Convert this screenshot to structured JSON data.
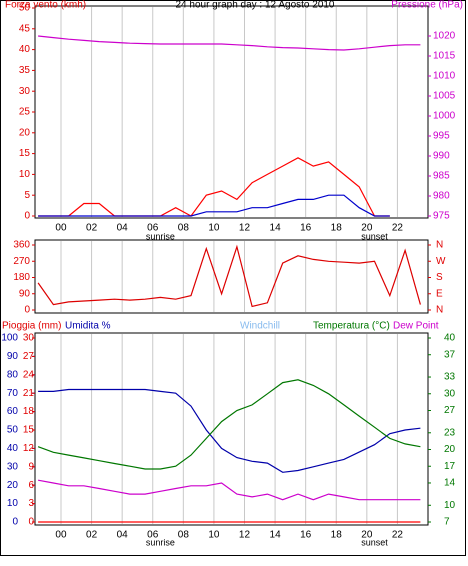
{
  "chart_data": [
    {
      "type": "line",
      "title": "24 hour graph day : 12 Agosto 2010",
      "ylabel": "Forza vento (kmh)",
      "y2label": "Pressione (hPa)",
      "ycolor": "#e00000",
      "y2color": "#cc00cc",
      "xlim": [
        -1.7,
        24
      ],
      "xticks": [
        {
          "value": 0,
          "label": "00"
        },
        {
          "value": 2,
          "label": "02"
        },
        {
          "value": 4,
          "label": "04"
        },
        {
          "value": 6,
          "label": "06"
        },
        {
          "value": 8,
          "label": "08"
        },
        10,
        12,
        14,
        16,
        18,
        20,
        22
      ],
      "ylim": [
        0,
        50
      ],
      "yticks": [
        0,
        5,
        10,
        15,
        20,
        25,
        30,
        35,
        40,
        45,
        50
      ],
      "y2lim": [
        975,
        1027
      ],
      "y2ticks": [
        975,
        980,
        985,
        990,
        995,
        1000,
        1005,
        1010,
        1015,
        1020
      ],
      "annotations": [
        {
          "text": "sunrise",
          "x": 6.5
        },
        {
          "text": "sunset",
          "x": 20.5
        }
      ],
      "x": [
        -1.5,
        -0.5,
        0.5,
        1.5,
        2.5,
        3.5,
        4.5,
        5.5,
        6.5,
        7.5,
        8.5,
        9.5,
        10.5,
        11.5,
        12.5,
        13.5,
        14.5,
        15.5,
        16.5,
        17.5,
        18.5,
        19.5,
        20.5,
        21.5,
        22.5,
        23.5
      ],
      "series": [
        {
          "color": "#ff0000",
          "values": [
            0,
            0,
            0,
            3,
            3,
            0,
            0,
            0,
            0,
            2,
            0,
            5,
            6,
            4,
            8,
            10,
            12,
            14,
            12,
            13,
            10,
            7,
            0,
            0,
            null,
            null
          ]
        },
        {
          "color": "#0000cc",
          "values": [
            0,
            0,
            0,
            0,
            0,
            0,
            0,
            0,
            0,
            0,
            0,
            1,
            1,
            1,
            2,
            2,
            3,
            4,
            4,
            5,
            5,
            2,
            0,
            0,
            null,
            null
          ]
        },
        {
          "color": "#cc00cc",
          "axis": "y2",
          "values": [
            1020,
            1019.6,
            1019.2,
            1018.9,
            1018.6,
            1018.4,
            1018.2,
            1018.1,
            1018,
            1018,
            1018,
            1018,
            1018,
            1017.8,
            1017.6,
            1017.3,
            1017.1,
            1017,
            1016.8,
            1016.6,
            1016.5,
            1016.8,
            1017.2,
            1017.6,
            1017.8,
            1017.8
          ]
        }
      ]
    },
    {
      "type": "line",
      "ycolor": "#e00000",
      "y2color": "#e00000",
      "xlim": [
        -1.7,
        24
      ],
      "xticks": [
        0,
        2,
        4,
        6,
        8,
        10,
        12,
        14,
        16,
        18,
        20,
        22
      ],
      "ylim": [
        0,
        360
      ],
      "yticks": [
        0,
        90,
        180,
        270,
        360
      ],
      "y2lim": [
        0,
        360
      ],
      "y2ticks": [
        {
          "value": 0,
          "label": "N"
        },
        {
          "value": 90,
          "label": "E"
        },
        {
          "value": 180,
          "label": "S"
        },
        {
          "value": 270,
          "label": "W"
        },
        {
          "value": 360,
          "label": "N"
        }
      ],
      "x": [
        -1.5,
        -0.5,
        0.5,
        1.5,
        2.5,
        3.5,
        4.5,
        5.5,
        6.5,
        7.5,
        8.5,
        9.5,
        10.5,
        11.5,
        12.5,
        13.5,
        14.5,
        15.5,
        16.5,
        17.5,
        18.5,
        19.5,
        20.5,
        21.5,
        22.5,
        23.5
      ],
      "series": [
        {
          "color": "#dd0000",
          "values": [
            150,
            30,
            45,
            50,
            55,
            60,
            55,
            60,
            70,
            60,
            80,
            340,
            90,
            350,
            20,
            40,
            260,
            300,
            280,
            270,
            265,
            260,
            270,
            80,
            330,
            30
          ]
        }
      ]
    },
    {
      "type": "line",
      "header": [
        {
          "text": "Pioggia (mm)",
          "color": "#e00000"
        },
        {
          "text": "Umidita %",
          "color": "#0000aa"
        },
        {
          "text": "Windchill",
          "color": "#88bbee"
        },
        {
          "text": "Temperatura (°C)",
          "color": "#007700"
        },
        {
          "text": "Dew Point",
          "color": "#cc00cc"
        }
      ],
      "ycolor": "#0000aa",
      "y2color": "#007700",
      "y3color": "#e00000",
      "xlim": [
        -1.7,
        24
      ],
      "xticks": [
        {
          "value": 0,
          "label": "00"
        },
        {
          "value": 2,
          "label": "02"
        },
        {
          "value": 4,
          "label": "04"
        },
        {
          "value": 6,
          "label": "06"
        },
        {
          "value": 8,
          "label": "08"
        },
        10,
        12,
        14,
        16,
        18,
        20,
        22
      ],
      "ylim": [
        0,
        100
      ],
      "yticks": [
        0,
        10,
        20,
        30,
        40,
        50,
        60,
        70,
        80,
        90,
        100
      ],
      "y3lim": [
        0,
        30
      ],
      "y3ticks": [
        0,
        3,
        6,
        9,
        12,
        15,
        18,
        21,
        24,
        27,
        30
      ],
      "y2lim": [
        7,
        40
      ],
      "y2ticks": [
        7,
        10,
        14,
        17,
        20,
        23,
        27,
        30,
        33,
        37,
        40
      ],
      "annotations": [
        {
          "text": "sunrise",
          "x": 6.5
        },
        {
          "text": "sunset",
          "x": 20.5
        }
      ],
      "x": [
        -1.5,
        -0.5,
        0.5,
        1.5,
        2.5,
        3.5,
        4.5,
        5.5,
        6.5,
        7.5,
        8.5,
        9.5,
        10.5,
        11.5,
        12.5,
        13.5,
        14.5,
        15.5,
        16.5,
        17.5,
        18.5,
        19.5,
        20.5,
        21.5,
        22.5,
        23.5
      ],
      "series": [
        {
          "color": "#ff0000",
          "axis": "y3",
          "values": [
            0,
            0,
            0,
            0,
            0,
            0,
            0,
            0,
            0,
            0,
            0,
            0,
            0,
            0,
            0,
            0,
            0,
            0,
            0,
            0,
            0,
            0,
            0,
            0,
            0,
            0
          ]
        },
        {
          "color": "#0000aa",
          "values": [
            71,
            71,
            72,
            72,
            72,
            72,
            72,
            72,
            71,
            70,
            63,
            50,
            40,
            35,
            33,
            32,
            27,
            28,
            30,
            32,
            34,
            38,
            42,
            48,
            50,
            51
          ]
        },
        {
          "color": "#007700",
          "axis": "y2",
          "values": [
            20.5,
            19.5,
            19,
            18.5,
            18,
            17.5,
            17,
            16.5,
            16.5,
            17,
            19,
            22,
            25,
            27,
            28,
            30,
            32,
            32.5,
            31.5,
            30,
            28,
            26,
            24,
            22,
            21,
            20.5
          ]
        },
        {
          "color": "#cc00cc",
          "axis": "y2",
          "values": [
            14.5,
            14,
            13.5,
            13.5,
            13,
            12.5,
            12,
            12,
            12.5,
            13,
            13.5,
            13.5,
            14,
            12,
            11.5,
            12,
            11,
            12,
            11,
            12,
            11.5,
            11,
            11,
            11,
            11,
            11
          ]
        }
      ]
    }
  ]
}
